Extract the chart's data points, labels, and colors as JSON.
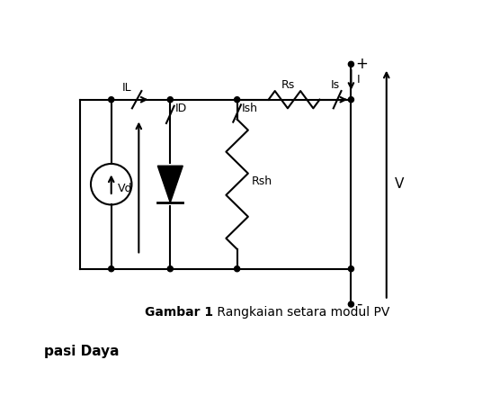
{
  "title_bold": "Gambar 1",
  "title_normal": " Rangkaian setara modul PV",
  "background_color": "#ffffff",
  "line_color": "#000000",
  "labels": {
    "IL": "IL",
    "ID": "ID",
    "Ish": "Ish",
    "Vd": "Vd",
    "Rs": "Rs",
    "Is": "Is",
    "Rsh": "Rsh",
    "I": "I",
    "V": "V",
    "plus": "+",
    "minus": "-",
    "pasi_daya": "pasi Daya"
  }
}
